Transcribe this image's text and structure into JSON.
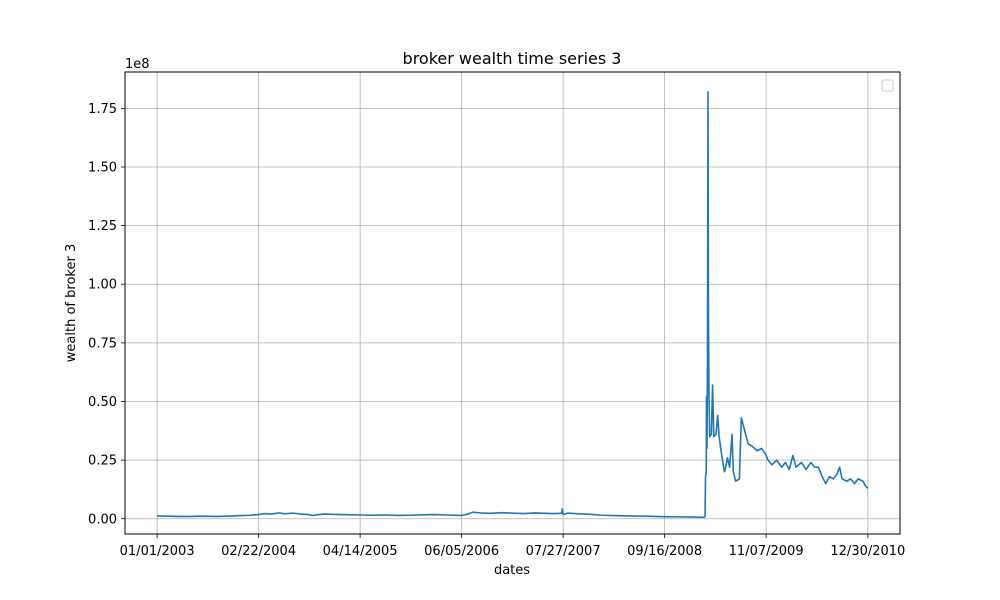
{
  "chart_data": {
    "type": "line",
    "title": "broker wealth time series 3",
    "xlabel": "dates",
    "ylabel": "wealth of broker 3",
    "y_offset_label": "1e8",
    "y_scale": 100000000,
    "xlim": [
      "2002-08-22",
      "2011-05-11"
    ],
    "ylim": [
      -6500000,
      190500000
    ],
    "x_ticks": [
      "01/01/2003",
      "02/22/2004",
      "04/14/2005",
      "06/05/2006",
      "07/27/2007",
      "09/16/2008",
      "11/07/2009",
      "12/30/2010"
    ],
    "y_ticks": [
      "0.00",
      "0.25",
      "0.50",
      "0.75",
      "1.00",
      "1.25",
      "1.50",
      "1.75"
    ],
    "grid": true,
    "legend": "top-right, empty",
    "series": [
      {
        "color": "#1f77b4",
        "points": [
          [
            "2003-01-01",
            1200000
          ],
          [
            "2003-02-15",
            1100000
          ],
          [
            "2003-04-01",
            1000000
          ],
          [
            "2003-05-20",
            1000000
          ],
          [
            "2003-07-01",
            1100000
          ],
          [
            "2003-09-01",
            1000000
          ],
          [
            "2003-10-15",
            1100000
          ],
          [
            "2003-12-01",
            1300000
          ],
          [
            "2004-01-15",
            1500000
          ],
          [
            "2004-02-22",
            1800000
          ],
          [
            "2004-03-20",
            2200000
          ],
          [
            "2004-04-15",
            2000000
          ],
          [
            "2004-05-15",
            2500000
          ],
          [
            "2004-06-10",
            2100000
          ],
          [
            "2004-07-10",
            2400000
          ],
          [
            "2004-08-15",
            2000000
          ],
          [
            "2004-09-15",
            1800000
          ],
          [
            "2004-10-01",
            1400000
          ],
          [
            "2004-10-20",
            1700000
          ],
          [
            "2004-11-15",
            2000000
          ],
          [
            "2004-12-15",
            1900000
          ],
          [
            "2005-02-01",
            1800000
          ],
          [
            "2005-04-14",
            1600000
          ],
          [
            "2005-06-01",
            1500000
          ],
          [
            "2005-08-01",
            1600000
          ],
          [
            "2005-09-15",
            1400000
          ],
          [
            "2005-11-01",
            1500000
          ],
          [
            "2006-01-01",
            1700000
          ],
          [
            "2006-02-15",
            1800000
          ],
          [
            "2006-04-01",
            1600000
          ],
          [
            "2006-06-05",
            1400000
          ],
          [
            "2006-07-01",
            2000000
          ],
          [
            "2006-07-20",
            2800000
          ],
          [
            "2006-08-20",
            2500000
          ],
          [
            "2006-10-01",
            2300000
          ],
          [
            "2006-11-15",
            2600000
          ],
          [
            "2007-01-01",
            2400000
          ],
          [
            "2007-02-15",
            2200000
          ],
          [
            "2007-04-01",
            2500000
          ],
          [
            "2007-05-15",
            2300000
          ],
          [
            "2007-06-15",
            2200000
          ],
          [
            "2007-07-20",
            2300000
          ],
          [
            "2007-07-24",
            4200000
          ],
          [
            "2007-07-27",
            1800000
          ],
          [
            "2007-08-15",
            2400000
          ],
          [
            "2007-10-01",
            2100000
          ],
          [
            "2007-11-15",
            1900000
          ],
          [
            "2008-01-01",
            1500000
          ],
          [
            "2008-03-01",
            1300000
          ],
          [
            "2008-05-01",
            1200000
          ],
          [
            "2008-07-01",
            1100000
          ],
          [
            "2008-09-16",
            900000
          ],
          [
            "2008-11-15",
            800000
          ],
          [
            "2009-01-15",
            700000
          ],
          [
            "2009-02-20",
            600000
          ],
          [
            "2009-03-01",
            800000
          ],
          [
            "2009-03-03",
            18000000
          ],
          [
            "2009-03-06",
            20000000
          ],
          [
            "2009-03-07",
            52000000
          ],
          [
            "2009-03-09",
            30000000
          ],
          [
            "2009-03-11",
            68000000
          ],
          [
            "2009-03-13",
            182000000
          ],
          [
            "2009-03-15",
            90000000
          ],
          [
            "2009-03-17",
            55000000
          ],
          [
            "2009-03-20",
            35000000
          ],
          [
            "2009-03-27",
            36000000
          ],
          [
            "2009-04-01",
            57000000
          ],
          [
            "2009-04-06",
            35000000
          ],
          [
            "2009-04-15",
            36000000
          ],
          [
            "2009-04-22",
            44000000
          ],
          [
            "2009-04-28",
            35000000
          ],
          [
            "2009-05-10",
            26000000
          ],
          [
            "2009-05-20",
            20000000
          ],
          [
            "2009-05-25",
            22000000
          ],
          [
            "2009-06-01",
            26000000
          ],
          [
            "2009-06-10",
            22000000
          ],
          [
            "2009-06-20",
            36000000
          ],
          [
            "2009-06-25",
            20000000
          ],
          [
            "2009-07-05",
            16000000
          ],
          [
            "2009-07-20",
            17000000
          ],
          [
            "2009-07-28",
            43000000
          ],
          [
            "2009-08-10",
            38000000
          ],
          [
            "2009-08-25",
            32000000
          ],
          [
            "2009-09-10",
            31000000
          ],
          [
            "2009-10-01",
            29000000
          ],
          [
            "2009-10-20",
            30000000
          ],
          [
            "2009-11-07",
            27000000
          ],
          [
            "2009-11-15",
            25000000
          ],
          [
            "2009-12-01",
            23000000
          ],
          [
            "2009-12-20",
            25000000
          ],
          [
            "2010-01-10",
            22000000
          ],
          [
            "2010-01-25",
            24000000
          ],
          [
            "2010-02-10",
            21000000
          ],
          [
            "2010-02-25",
            27000000
          ],
          [
            "2010-03-10",
            22000000
          ],
          [
            "2010-04-01",
            24000000
          ],
          [
            "2010-04-20",
            21000000
          ],
          [
            "2010-05-10",
            24000000
          ],
          [
            "2010-05-25",
            22000000
          ],
          [
            "2010-06-10",
            22000000
          ],
          [
            "2010-06-25",
            18000000
          ],
          [
            "2010-07-10",
            15000000
          ],
          [
            "2010-07-25",
            18000000
          ],
          [
            "2010-08-10",
            17000000
          ],
          [
            "2010-08-25",
            19000000
          ],
          [
            "2010-09-05",
            22000000
          ],
          [
            "2010-09-15",
            17000000
          ],
          [
            "2010-10-05",
            16000000
          ],
          [
            "2010-10-20",
            17000000
          ],
          [
            "2010-11-05",
            15000000
          ],
          [
            "2010-11-20",
            17000000
          ],
          [
            "2010-12-10",
            16000000
          ],
          [
            "2010-12-20",
            14000000
          ],
          [
            "2010-12-30",
            13000000
          ]
        ]
      }
    ]
  }
}
